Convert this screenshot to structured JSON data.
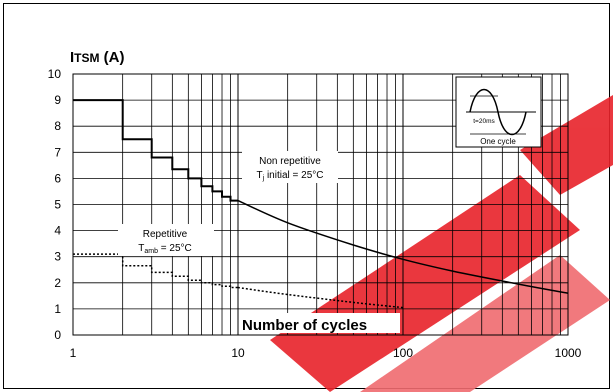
{
  "chart_data": {
    "type": "line",
    "ylabel_main": "I",
    "ylabel_sub": "TSM",
    "ylabel_unit": " (A)",
    "xlabel": "Number of cycles",
    "x_scale": "log",
    "xlim": [
      1,
      1000
    ],
    "ylim": [
      0,
      10
    ],
    "x_ticks": [
      "1",
      "10",
      "100",
      "1000"
    ],
    "y_ticks": [
      "0",
      "1",
      "2",
      "3",
      "4",
      "5",
      "6",
      "7",
      "8",
      "9",
      "10"
    ],
    "grid": true,
    "series": [
      {
        "name": "Non repetitive",
        "step_x": [
          1,
          2,
          2,
          3,
          3,
          4,
          4,
          5,
          5,
          6,
          6,
          7,
          7,
          8,
          8,
          9,
          9,
          10
        ],
        "step_y": [
          9.0,
          9.0,
          7.5,
          7.5,
          6.8,
          6.8,
          6.35,
          6.35,
          6.0,
          6.0,
          5.7,
          5.7,
          5.5,
          5.5,
          5.3,
          5.3,
          5.15,
          5.15
        ],
        "curve_x": [
          10,
          20,
          50,
          100,
          200,
          500,
          1000
        ],
        "curve_y": [
          5.15,
          4.3,
          3.45,
          2.9,
          2.45,
          1.95,
          1.6
        ]
      },
      {
        "name": "Repetitive",
        "step_x": [
          1,
          2,
          2,
          3,
          3,
          4,
          4,
          5,
          5,
          6,
          6,
          7,
          7,
          8,
          8,
          9,
          9,
          10
        ],
        "step_y": [
          3.1,
          3.1,
          2.65,
          2.65,
          2.4,
          2.4,
          2.25,
          2.25,
          2.1,
          2.1,
          2.0,
          2.0,
          1.93,
          1.93,
          1.87,
          1.87,
          1.82,
          1.82
        ],
        "curve_x": [
          10,
          20,
          50,
          100
        ],
        "curve_y": [
          1.82,
          1.55,
          1.25,
          1.05
        ]
      }
    ],
    "annotations": {
      "nonrep_line1": "Non repetitive",
      "nonrep_line2_prefix": "T",
      "nonrep_line2_sub": "j",
      "nonrep_line2_suffix": " initial = 25°C",
      "rep_line1": "Repetitive",
      "rep_line2_prefix": "T",
      "rep_line2_sub": "amb",
      "rep_line2_suffix": " = 25°C",
      "inset_label_pulse": "t=20ms",
      "inset_label_cycle": "One cycle"
    },
    "colors": {
      "curve": "#000000",
      "grid": "#000000",
      "watermark": "#e8222a"
    }
  }
}
